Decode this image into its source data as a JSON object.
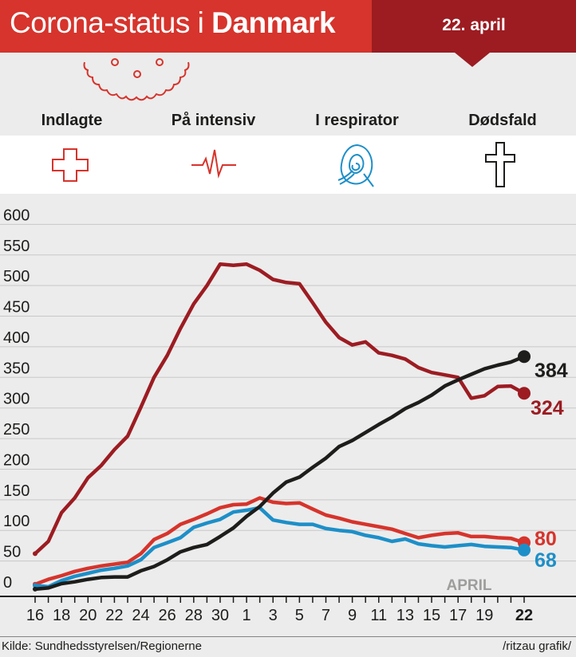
{
  "header": {
    "title_light": "Corona-status i ",
    "title_bold": "Danmark",
    "date": "22. april"
  },
  "categories": [
    {
      "label": "Indlagte",
      "icon": "medical-cross-icon",
      "color": "#d6342c"
    },
    {
      "label": "På intensiv",
      "icon": "heartbeat-icon",
      "color": "#d6342c"
    },
    {
      "label": "I respirator",
      "icon": "respirator-icon",
      "color": "#1d8fc8"
    },
    {
      "label": "Dødsfald",
      "icon": "latin-cross-icon",
      "color": "#1d1d1b"
    }
  ],
  "footer": {
    "source": "Kilde: Sundhedsstyrelsen/Regionerne",
    "credit": "/ritzau grafik/"
  },
  "chart_data": {
    "type": "line",
    "x_tick_labels": [
      "16",
      "18",
      "20",
      "22",
      "24",
      "26",
      "28",
      "30",
      "1",
      "3",
      "5",
      "7",
      "9",
      "11",
      "13",
      "15",
      "17",
      "19",
      "22"
    ],
    "month_label": "APRIL",
    "y_ticks": [
      0,
      50,
      100,
      150,
      200,
      250,
      300,
      350,
      400,
      450,
      500,
      550,
      600
    ],
    "ylim": [
      0,
      650
    ],
    "x": [
      "16/3",
      "17/3",
      "18/3",
      "19/3",
      "20/3",
      "21/3",
      "22/3",
      "23/3",
      "24/3",
      "25/3",
      "26/3",
      "27/3",
      "28/3",
      "29/3",
      "30/3",
      "31/3",
      "1/4",
      "2/4",
      "3/4",
      "4/4",
      "5/4",
      "6/4",
      "7/4",
      "8/4",
      "9/4",
      "10/4",
      "11/4",
      "12/4",
      "13/4",
      "14/4",
      "15/4",
      "16/4",
      "17/4",
      "18/4",
      "19/4",
      "20/4",
      "21/4",
      "22/4"
    ],
    "series": [
      {
        "name": "Indlagte",
        "color": "#9c1c22",
        "end_label": "324",
        "values": [
          62,
          82,
          129,
          153,
          186,
          206,
          232,
          254,
          301,
          350,
          386,
          430,
          470,
          500,
          535,
          533,
          535,
          525,
          510,
          505,
          503,
          472,
          440,
          415,
          403,
          408,
          390,
          386,
          380,
          366,
          358,
          354,
          350,
          316,
          320,
          335,
          336,
          324
        ]
      },
      {
        "name": "På intensiv",
        "color": "#d6342c",
        "end_label": "80",
        "values": [
          12,
          20,
          26,
          33,
          38,
          42,
          45,
          48,
          62,
          85,
          95,
          110,
          118,
          127,
          137,
          142,
          143,
          153,
          146,
          144,
          145,
          135,
          125,
          120,
          114,
          110,
          106,
          102,
          95,
          88,
          92,
          95,
          96,
          90,
          90,
          88,
          87,
          80
        ]
      },
      {
        "name": "I respirator",
        "color": "#1d8fc8",
        "end_label": "68",
        "values": [
          10,
          8,
          18,
          25,
          30,
          35,
          38,
          42,
          52,
          72,
          80,
          88,
          105,
          112,
          118,
          130,
          133,
          137,
          117,
          113,
          110,
          110,
          103,
          100,
          98,
          92,
          88,
          82,
          86,
          78,
          75,
          73,
          75,
          77,
          74,
          73,
          72,
          68
        ]
      },
      {
        "name": "Dødsfald",
        "color": "#1d1d1b",
        "end_label": "384",
        "values": [
          4,
          6,
          13,
          16,
          20,
          23,
          24,
          24,
          34,
          41,
          52,
          65,
          72,
          77,
          90,
          104,
          123,
          139,
          161,
          179,
          187,
          203,
          218,
          237,
          247,
          260,
          273,
          285,
          299,
          309,
          321,
          336,
          346,
          355,
          364,
          370,
          375,
          384
        ]
      }
    ]
  }
}
